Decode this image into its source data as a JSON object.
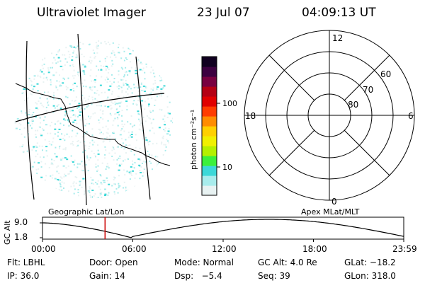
{
  "header": {
    "instrument": "Ultraviolet Imager",
    "date": "23 Jul 07",
    "time": "04:09:13 UT"
  },
  "colorbar": {
    "unit_label": "photon cm⁻²s⁻¹",
    "ticks": [
      "100",
      "10"
    ],
    "colors": [
      "#e8f2f2",
      "#a8ecec",
      "#3cd8d8",
      "#3cf03c",
      "#b4f000",
      "#f0f000",
      "#ffd000",
      "#ff8c00",
      "#ff3c00",
      "#e00000",
      "#b40014",
      "#780040",
      "#3c0040",
      "#100020"
    ]
  },
  "polar_plot": {
    "hour_labels": {
      "top": "12",
      "left": "18",
      "right": "6",
      "bottom": "0"
    },
    "lat_labels": [
      "60",
      "70",
      "80"
    ]
  },
  "timeline": {
    "left_label": "Geographic Lat/Lon",
    "right_label": "Apex MLat/MLT",
    "y_axis_label": "GC Alt",
    "y_ticks": [
      "9.0",
      "1.8"
    ],
    "x_ticks": [
      "00:00",
      "06:00",
      "12:00",
      "18:00",
      "23:59"
    ],
    "marker_time": "04:09:13",
    "marker_color": "#cc0000"
  },
  "status": {
    "row1": [
      {
        "key": "filter",
        "text": "Flt: LBHL"
      },
      {
        "key": "door",
        "text": "Door: Open"
      },
      {
        "key": "mode",
        "text": "Mode: Normal"
      },
      {
        "key": "gc_alt",
        "text": "GC Alt: 4.0 Re"
      },
      {
        "key": "glat",
        "text": "GLat: −18.2"
      }
    ],
    "row2": [
      {
        "key": "ip",
        "text": "IP: 36.0"
      },
      {
        "key": "gain",
        "text": "Gain: 14"
      },
      {
        "key": "dsp",
        "text": "Dsp:   −5.4"
      },
      {
        "key": "seq",
        "text": "Seq: 39"
      },
      {
        "key": "glon",
        "text": "GLon: 318.0"
      }
    ]
  }
}
